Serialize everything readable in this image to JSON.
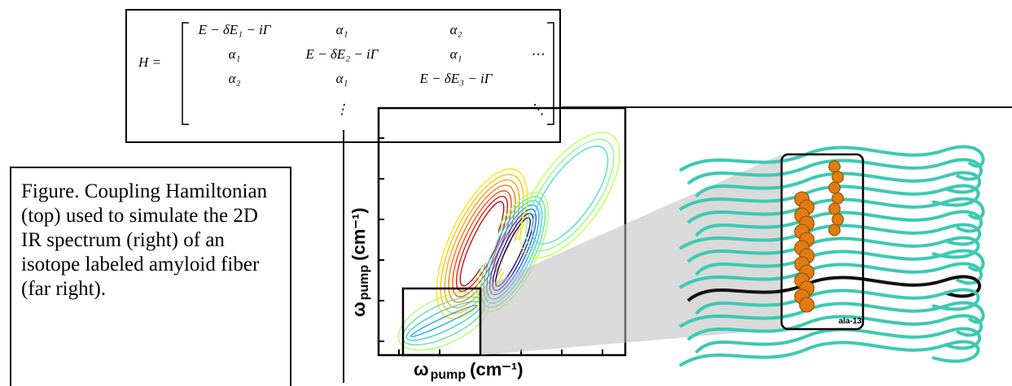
{
  "matrix": {
    "lhs": "H =",
    "rows": [
      [
        "E − δE₁ − iΓ",
        "α₁",
        "α₂",
        null
      ],
      [
        "α₁",
        "E − δE₂ − iΓ",
        "α₁",
        "⋯"
      ],
      [
        "α₂",
        "α₁",
        "E − δE₃ − iΓ",
        null
      ],
      [
        null,
        "⋮",
        null,
        "⋱"
      ]
    ]
  },
  "caption": "Figure.  Coupling Hamiltonian (top) used to simulate the 2D IR spectrum (right) of an isotope labeled amyloid fiber (far right).",
  "plot": {
    "x_axis": {
      "symbol": "ω",
      "sub": "pump",
      "unit": "(cm⁻¹)"
    },
    "y_axis": {
      "symbol": "ω",
      "sub": "pump",
      "unit": "(cm⁻¹)"
    }
  },
  "structure": {
    "label": "ala-13"
  }
}
